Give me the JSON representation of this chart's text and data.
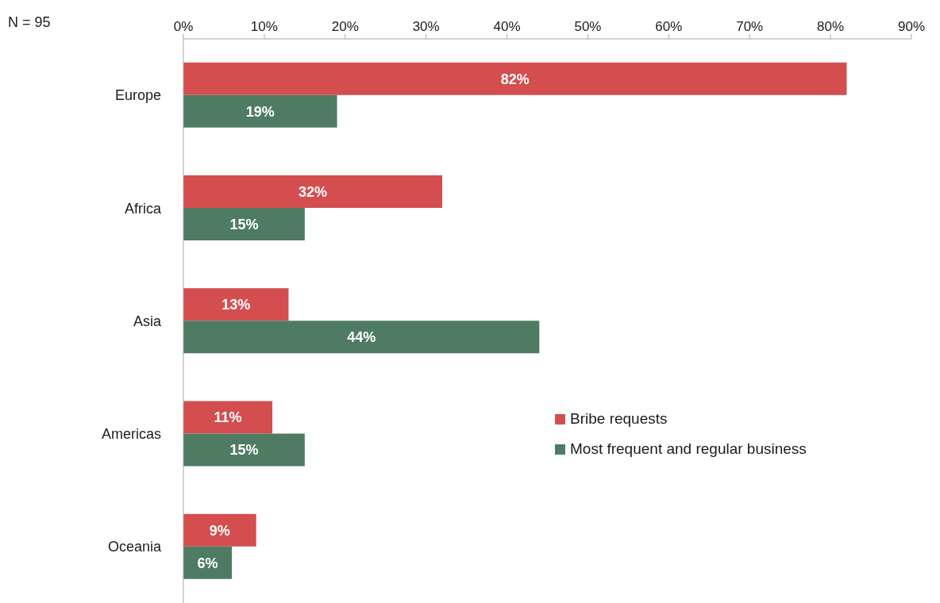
{
  "chart_data": {
    "type": "bar",
    "orientation": "horizontal",
    "categories": [
      "Europe",
      "Africa",
      "Asia",
      "Americas",
      "Oceania"
    ],
    "series": [
      {
        "name": "Bribe requests",
        "color": "#d44e4f",
        "values": [
          82,
          32,
          13,
          11,
          9
        ],
        "value_labels": [
          "82%",
          "32%",
          "13%",
          "11%",
          "9%"
        ]
      },
      {
        "name": "Most frequent and regular business",
        "color": "#4f7b63",
        "values": [
          19,
          15,
          44,
          15,
          6
        ],
        "value_labels": [
          "19%",
          "15%",
          "44%",
          "15%",
          "6%"
        ]
      }
    ],
    "xlim": [
      0,
      90
    ],
    "xticks": [
      {
        "value": 0,
        "label": "0%"
      },
      {
        "value": 10,
        "label": "10%"
      },
      {
        "value": 20,
        "label": "20%"
      },
      {
        "value": 30,
        "label": "30%"
      },
      {
        "value": 40,
        "label": "40%"
      },
      {
        "value": 50,
        "label": "50%"
      },
      {
        "value": 60,
        "label": "60%"
      },
      {
        "value": 70,
        "label": "70%"
      },
      {
        "value": 80,
        "label": "80%"
      },
      {
        "value": 90,
        "label": "90%"
      }
    ],
    "legend": "right",
    "annotations": [
      "N = 95"
    ]
  }
}
